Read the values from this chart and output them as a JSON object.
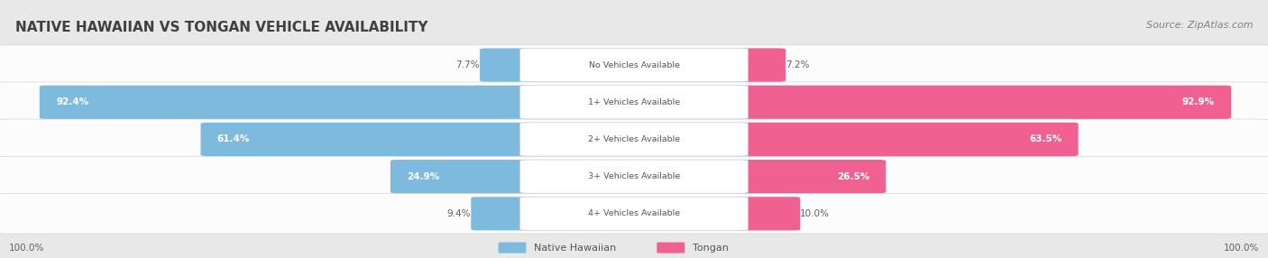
{
  "title": "NATIVE HAWAIIAN VS TONGAN VEHICLE AVAILABILITY",
  "source": "Source: ZipAtlas.com",
  "categories": [
    "No Vehicles Available",
    "1+ Vehicles Available",
    "2+ Vehicles Available",
    "3+ Vehicles Available",
    "4+ Vehicles Available"
  ],
  "native_hawaiian": [
    7.7,
    92.4,
    61.4,
    24.9,
    9.4
  ],
  "tongan": [
    7.2,
    92.9,
    63.5,
    26.5,
    10.0
  ],
  "blue_color": "#7eb9de",
  "pink_color": "#f06090",
  "pink_light": "#f5a0c0",
  "blue_light": "#aacce8",
  "bg_color": "#e8e8e8",
  "row_bg_color": "#f2f2f2",
  "title_color": "#404040",
  "source_color": "#808080",
  "label_dark": "#606060",
  "label_white": "#ffffff"
}
